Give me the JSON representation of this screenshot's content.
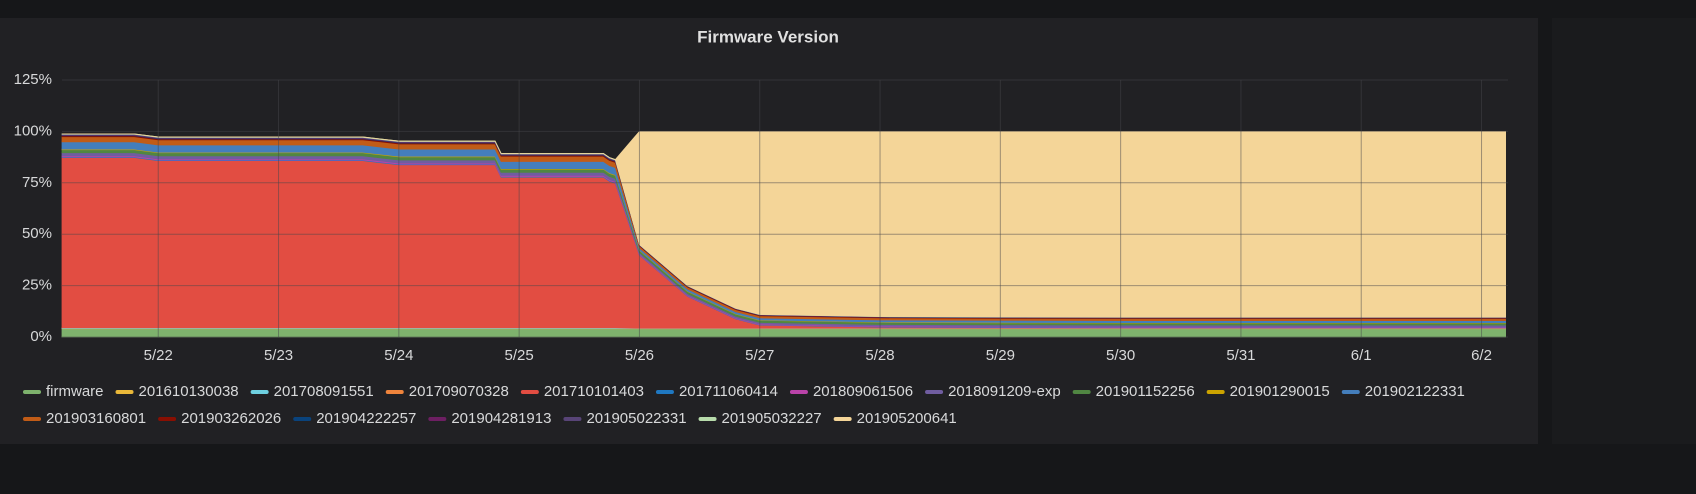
{
  "chart_data": {
    "type": "area",
    "stacked": true,
    "title": "Firmware Version",
    "x": [
      21.2,
      21.8,
      22.0,
      23.0,
      23.7,
      24.0,
      24.8,
      24.85,
      25.7,
      25.75,
      25.8,
      26.0,
      26.4,
      26.8,
      27.0,
      28,
      29,
      30,
      31,
      32,
      33.2
    ],
    "xlim": [
      21.2,
      33.22
    ],
    "xticks": [
      {
        "value": 22,
        "label": "5/22"
      },
      {
        "value": 23,
        "label": "5/23"
      },
      {
        "value": 24,
        "label": "5/24"
      },
      {
        "value": 25,
        "label": "5/25"
      },
      {
        "value": 26,
        "label": "5/26"
      },
      {
        "value": 27,
        "label": "5/27"
      },
      {
        "value": 28,
        "label": "5/28"
      },
      {
        "value": 29,
        "label": "5/29"
      },
      {
        "value": 30,
        "label": "5/30"
      },
      {
        "value": 31,
        "label": "5/31"
      },
      {
        "value": 32,
        "label": "6/1"
      },
      {
        "value": 33,
        "label": "6/2"
      }
    ],
    "ylim": [
      0,
      125
    ],
    "yticks": [
      {
        "value": 0,
        "label": "0%"
      },
      {
        "value": 25,
        "label": "25%"
      },
      {
        "value": 50,
        "label": "50%"
      },
      {
        "value": 75,
        "label": "75%"
      },
      {
        "value": 100,
        "label": "100%"
      },
      {
        "value": 125,
        "label": "125%"
      }
    ],
    "grid": true,
    "legend": "bottom",
    "series": [
      {
        "name": "firmware",
        "color": "#7eb26d",
        "values": [
          4,
          4,
          4,
          4,
          4,
          4,
          4,
          4,
          4,
          4,
          4,
          4,
          4,
          4,
          4,
          4,
          4,
          4,
          4,
          4,
          4
        ]
      },
      {
        "name": "201610130038",
        "color": "#eab839",
        "values": [
          0.1,
          0.1,
          0.1,
          0.1,
          0.1,
          0.1,
          0.1,
          0.1,
          0.1,
          0.1,
          0.1,
          0.1,
          0.1,
          0.1,
          0.1,
          0.1,
          0.1,
          0.1,
          0.1,
          0.1,
          0.1
        ]
      },
      {
        "name": "201708091551",
        "color": "#6ed0e0",
        "values": [
          0.3,
          0.3,
          0.3,
          0.3,
          0.3,
          0.3,
          0.3,
          0.3,
          0.3,
          0.3,
          0.3,
          0.1,
          0.1,
          0.1,
          0.1,
          0.1,
          0.1,
          0.1,
          0.1,
          0.1,
          0.1
        ]
      },
      {
        "name": "201709070328",
        "color": "#ef843c",
        "values": [
          0.2,
          0.2,
          0.2,
          0.2,
          0.2,
          0.2,
          0.2,
          0.2,
          0.2,
          0.2,
          0.2,
          0.1,
          0.1,
          0.1,
          0.1,
          0.1,
          0.1,
          0.1,
          0.1,
          0.1,
          0.1
        ]
      },
      {
        "name": "201710101403",
        "color": "#e24d42",
        "values": [
          82.7,
          82.7,
          81.2,
          81.2,
          81.2,
          79.2,
          79.2,
          73.2,
          73.2,
          71.2,
          70.2,
          35.5,
          15.5,
          4.5,
          1.5,
          0.5,
          0.3,
          0.2,
          0.2,
          0.2,
          0.2
        ]
      },
      {
        "name": "201711060414",
        "color": "#1f78c1",
        "values": [
          0.3,
          0.3,
          0.3,
          0.3,
          0.3,
          0.3,
          0.3,
          0.3,
          0.3,
          0.3,
          0.3,
          0.2,
          0.2,
          0.2,
          0.2,
          0.2,
          0.2,
          0.2,
          0.2,
          0.2,
          0.2
        ]
      },
      {
        "name": "201809061506",
        "color": "#ba43a9",
        "values": [
          0.5,
          0.5,
          0.5,
          0.5,
          0.5,
          0.5,
          0.5,
          0.5,
          0.5,
          0.5,
          0.5,
          0.3,
          0.3,
          0.3,
          0.3,
          0.3,
          0.3,
          0.3,
          0.3,
          0.3,
          0.3
        ]
      },
      {
        "name": "2018091209-exp",
        "color": "#705da0",
        "values": [
          1.5,
          1.5,
          1.5,
          1.5,
          1.5,
          1.5,
          1.5,
          1.5,
          1.5,
          1.5,
          1.5,
          0.8,
          0.8,
          0.8,
          0.8,
          0.8,
          0.8,
          0.8,
          0.8,
          0.8,
          0.8
        ]
      },
      {
        "name": "201901152256",
        "color": "#508642",
        "values": [
          1.5,
          1.5,
          1.5,
          1.5,
          1.5,
          1.5,
          1.5,
          1.5,
          1.5,
          1.5,
          1.5,
          1,
          1,
          1,
          1,
          1,
          1,
          1,
          1,
          1,
          1
        ]
      },
      {
        "name": "201901290015",
        "color": "#cca300",
        "values": [
          0.3,
          0.3,
          0.3,
          0.3,
          0.3,
          0.3,
          0.3,
          0.3,
          0.3,
          0.3,
          0.3,
          0.2,
          0.2,
          0.2,
          0.2,
          0.2,
          0.2,
          0.2,
          0.2,
          0.2,
          0.2
        ]
      },
      {
        "name": "201902122331",
        "color": "#447ebc",
        "values": [
          3.5,
          3.5,
          3.5,
          3.5,
          3.5,
          3.5,
          3.5,
          3.5,
          3.5,
          3.5,
          3.5,
          1,
          1,
          1,
          1,
          1,
          1,
          1,
          1,
          1,
          1
        ]
      },
      {
        "name": "201903160801",
        "color": "#c15c17",
        "values": [
          2.5,
          2.5,
          2.5,
          2.5,
          2.5,
          2.5,
          2.5,
          2.5,
          2.5,
          2.5,
          2.5,
          1,
          1,
          1,
          1,
          1,
          1,
          1,
          1,
          1,
          1
        ]
      },
      {
        "name": "201903262026",
        "color": "#890f02",
        "values": [
          0.5,
          0.5,
          0.5,
          0.5,
          0.5,
          0.5,
          0.5,
          0.5,
          0.5,
          0.5,
          0.5,
          0.3,
          0.3,
          0.3,
          0.3,
          0.3,
          0.3,
          0.3,
          0.3,
          0.3,
          0.3
        ]
      },
      {
        "name": "201904222257",
        "color": "#0a437c",
        "values": [
          0.2,
          0.2,
          0.2,
          0.2,
          0.2,
          0.2,
          0.2,
          0.2,
          0.2,
          0.2,
          0.2,
          0.1,
          0.1,
          0.1,
          0.1,
          0.1,
          0.1,
          0.1,
          0.1,
          0.1,
          0.1
        ]
      },
      {
        "name": "201904281913",
        "color": "#6d1f62",
        "values": [
          0.2,
          0.2,
          0.2,
          0.2,
          0.2,
          0.2,
          0.2,
          0.2,
          0.2,
          0.2,
          0.2,
          0.1,
          0.1,
          0.1,
          0.1,
          0.1,
          0.1,
          0.1,
          0.1,
          0.1,
          0.1
        ]
      },
      {
        "name": "201905022331",
        "color": "#584477",
        "values": [
          0.3,
          0.3,
          0.3,
          0.3,
          0.3,
          0.3,
          0.3,
          0.3,
          0.3,
          0.3,
          0.3,
          0.1,
          0.1,
          0.1,
          0.1,
          0.1,
          0.1,
          0.1,
          0.1,
          0.1,
          0.1
        ]
      },
      {
        "name": "201905032227",
        "color": "#b7dbab",
        "values": [
          0.2,
          0.2,
          0.2,
          0.2,
          0.2,
          0.2,
          0.2,
          0.2,
          0.2,
          0.2,
          0.2,
          0.1,
          0.1,
          0.1,
          0.1,
          0.1,
          0.1,
          0.1,
          0.1,
          0.1,
          0.1
        ]
      },
      {
        "name": "201905200641",
        "color": "#f4d598",
        "values": [
          0,
          0,
          0,
          0,
          0,
          0,
          0,
          0,
          0,
          0,
          0,
          55,
          75,
          86,
          89,
          90,
          90.2,
          90.3,
          90.3,
          90.3,
          90.3
        ]
      }
    ]
  }
}
